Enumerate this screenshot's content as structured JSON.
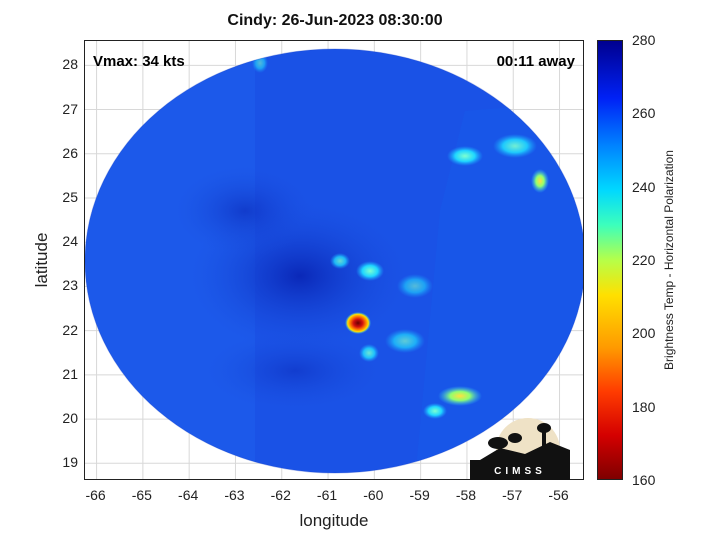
{
  "title": "Cindy: 26-Jun-2023 08:30:00",
  "vmax_text": "Vmax: 34 kts",
  "time_away_text": "00:11 away",
  "axes": {
    "xlabel": "longitude",
    "ylabel": "latitude",
    "xlim": [
      -66.25,
      -55.45
    ],
    "ylim": [
      18.6,
      28.55
    ],
    "xticks": [
      "-66",
      "-65",
      "-64",
      "-63",
      "-62",
      "-61",
      "-60",
      "-59",
      "-58",
      "-57",
      "-56"
    ],
    "yticks": [
      "19",
      "20",
      "21",
      "22",
      "23",
      "24",
      "25",
      "26",
      "27",
      "28"
    ]
  },
  "colorbar": {
    "label": "Brightness Temp - Horizontal Polarization",
    "ticks": [
      "160",
      "180",
      "200",
      "220",
      "240",
      "260",
      "280"
    ],
    "range": [
      160,
      280
    ],
    "colormap": "jet"
  },
  "colors": {
    "background_field": "#1a4fe0",
    "cold_core": "#c8102e",
    "convection": "#46e8e0"
  },
  "logo_text": "CIMSS",
  "map_features": {
    "storm_center_lon": -60.3,
    "storm_center_lat": 22.1,
    "min_brightness_temp": 165
  }
}
